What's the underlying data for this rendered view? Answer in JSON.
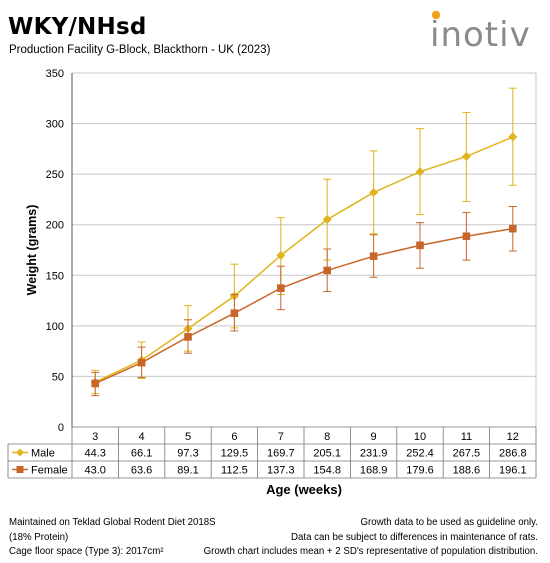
{
  "header": {
    "title": "WKY/NHsd",
    "subtitle": "Production Facility G-Block, Blackthorn - UK (2023)",
    "logo_text": "inotiv"
  },
  "colors": {
    "male": "#E0B41C",
    "female": "#C9652A",
    "axis": "#555555",
    "grid": "#c8c8c8",
    "logo": "#8a8a8a",
    "logo_accent": "#F2A21B"
  },
  "chart_data": {
    "type": "line",
    "xlabel": "Age (weeks)",
    "ylabel": "Weight (grams)",
    "ylim": [
      0,
      350
    ],
    "yticks": [
      0,
      50,
      100,
      150,
      200,
      250,
      300,
      350
    ],
    "categories": [
      "3",
      "4",
      "5",
      "6",
      "7",
      "8",
      "9",
      "10",
      "11",
      "12"
    ],
    "grid": true,
    "series": [
      {
        "name": "Male",
        "marker": "diamond",
        "values": [
          44.3,
          66.1,
          97.3,
          129.5,
          169.7,
          205.1,
          231.9,
          252.4,
          267.5,
          286.8
        ],
        "error_upper": [
          56,
          84,
          120,
          161,
          207,
          245,
          273,
          295,
          311,
          335
        ],
        "error_lower": [
          33,
          48,
          75,
          98,
          131,
          165,
          191,
          210,
          223,
          239
        ]
      },
      {
        "name": "Female",
        "marker": "square",
        "values": [
          43.0,
          63.6,
          89.1,
          112.5,
          137.3,
          154.8,
          168.9,
          179.6,
          188.6,
          196.1
        ],
        "error_upper": [
          54,
          79,
          106,
          131,
          159,
          176,
          190,
          202,
          212,
          218
        ],
        "error_lower": [
          31,
          49,
          73,
          95,
          116,
          134,
          148,
          157,
          165,
          174
        ]
      }
    ]
  },
  "footer": {
    "left": [
      "Maintained on Teklad Global Rodent Diet 2018S",
      "(18% Protein)",
      "Cage floor space (Type 3): 2017cm²"
    ],
    "right": [
      "Growth data to be used as guideline only.",
      "Data can be subject to differences in maintenance of rats.",
      "Growth chart includes mean + 2 SD's representative of population distribution."
    ]
  }
}
